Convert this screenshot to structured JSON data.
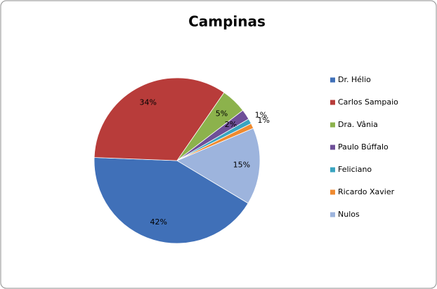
{
  "chart_data": {
    "type": "pie",
    "title": "Campinas",
    "categories": [
      "Dr. Hélio",
      "Carlos Sampaio",
      "Dra. Vânia",
      "Paulo Búffalo",
      "Feliciano",
      "Ricardo Xavier",
      "Nulos"
    ],
    "values": [
      42,
      34,
      5,
      2,
      1,
      1,
      15
    ],
    "value_labels": [
      "42%",
      "34%",
      "5%",
      "2%",
      "1%",
      "1%",
      "15%"
    ],
    "colors": [
      "#4070b8",
      "#b83c3a",
      "#8cb24c",
      "#6e4f98",
      "#3aa4c0",
      "#ef8a30",
      "#9db4dd"
    ],
    "legend": "right"
  }
}
